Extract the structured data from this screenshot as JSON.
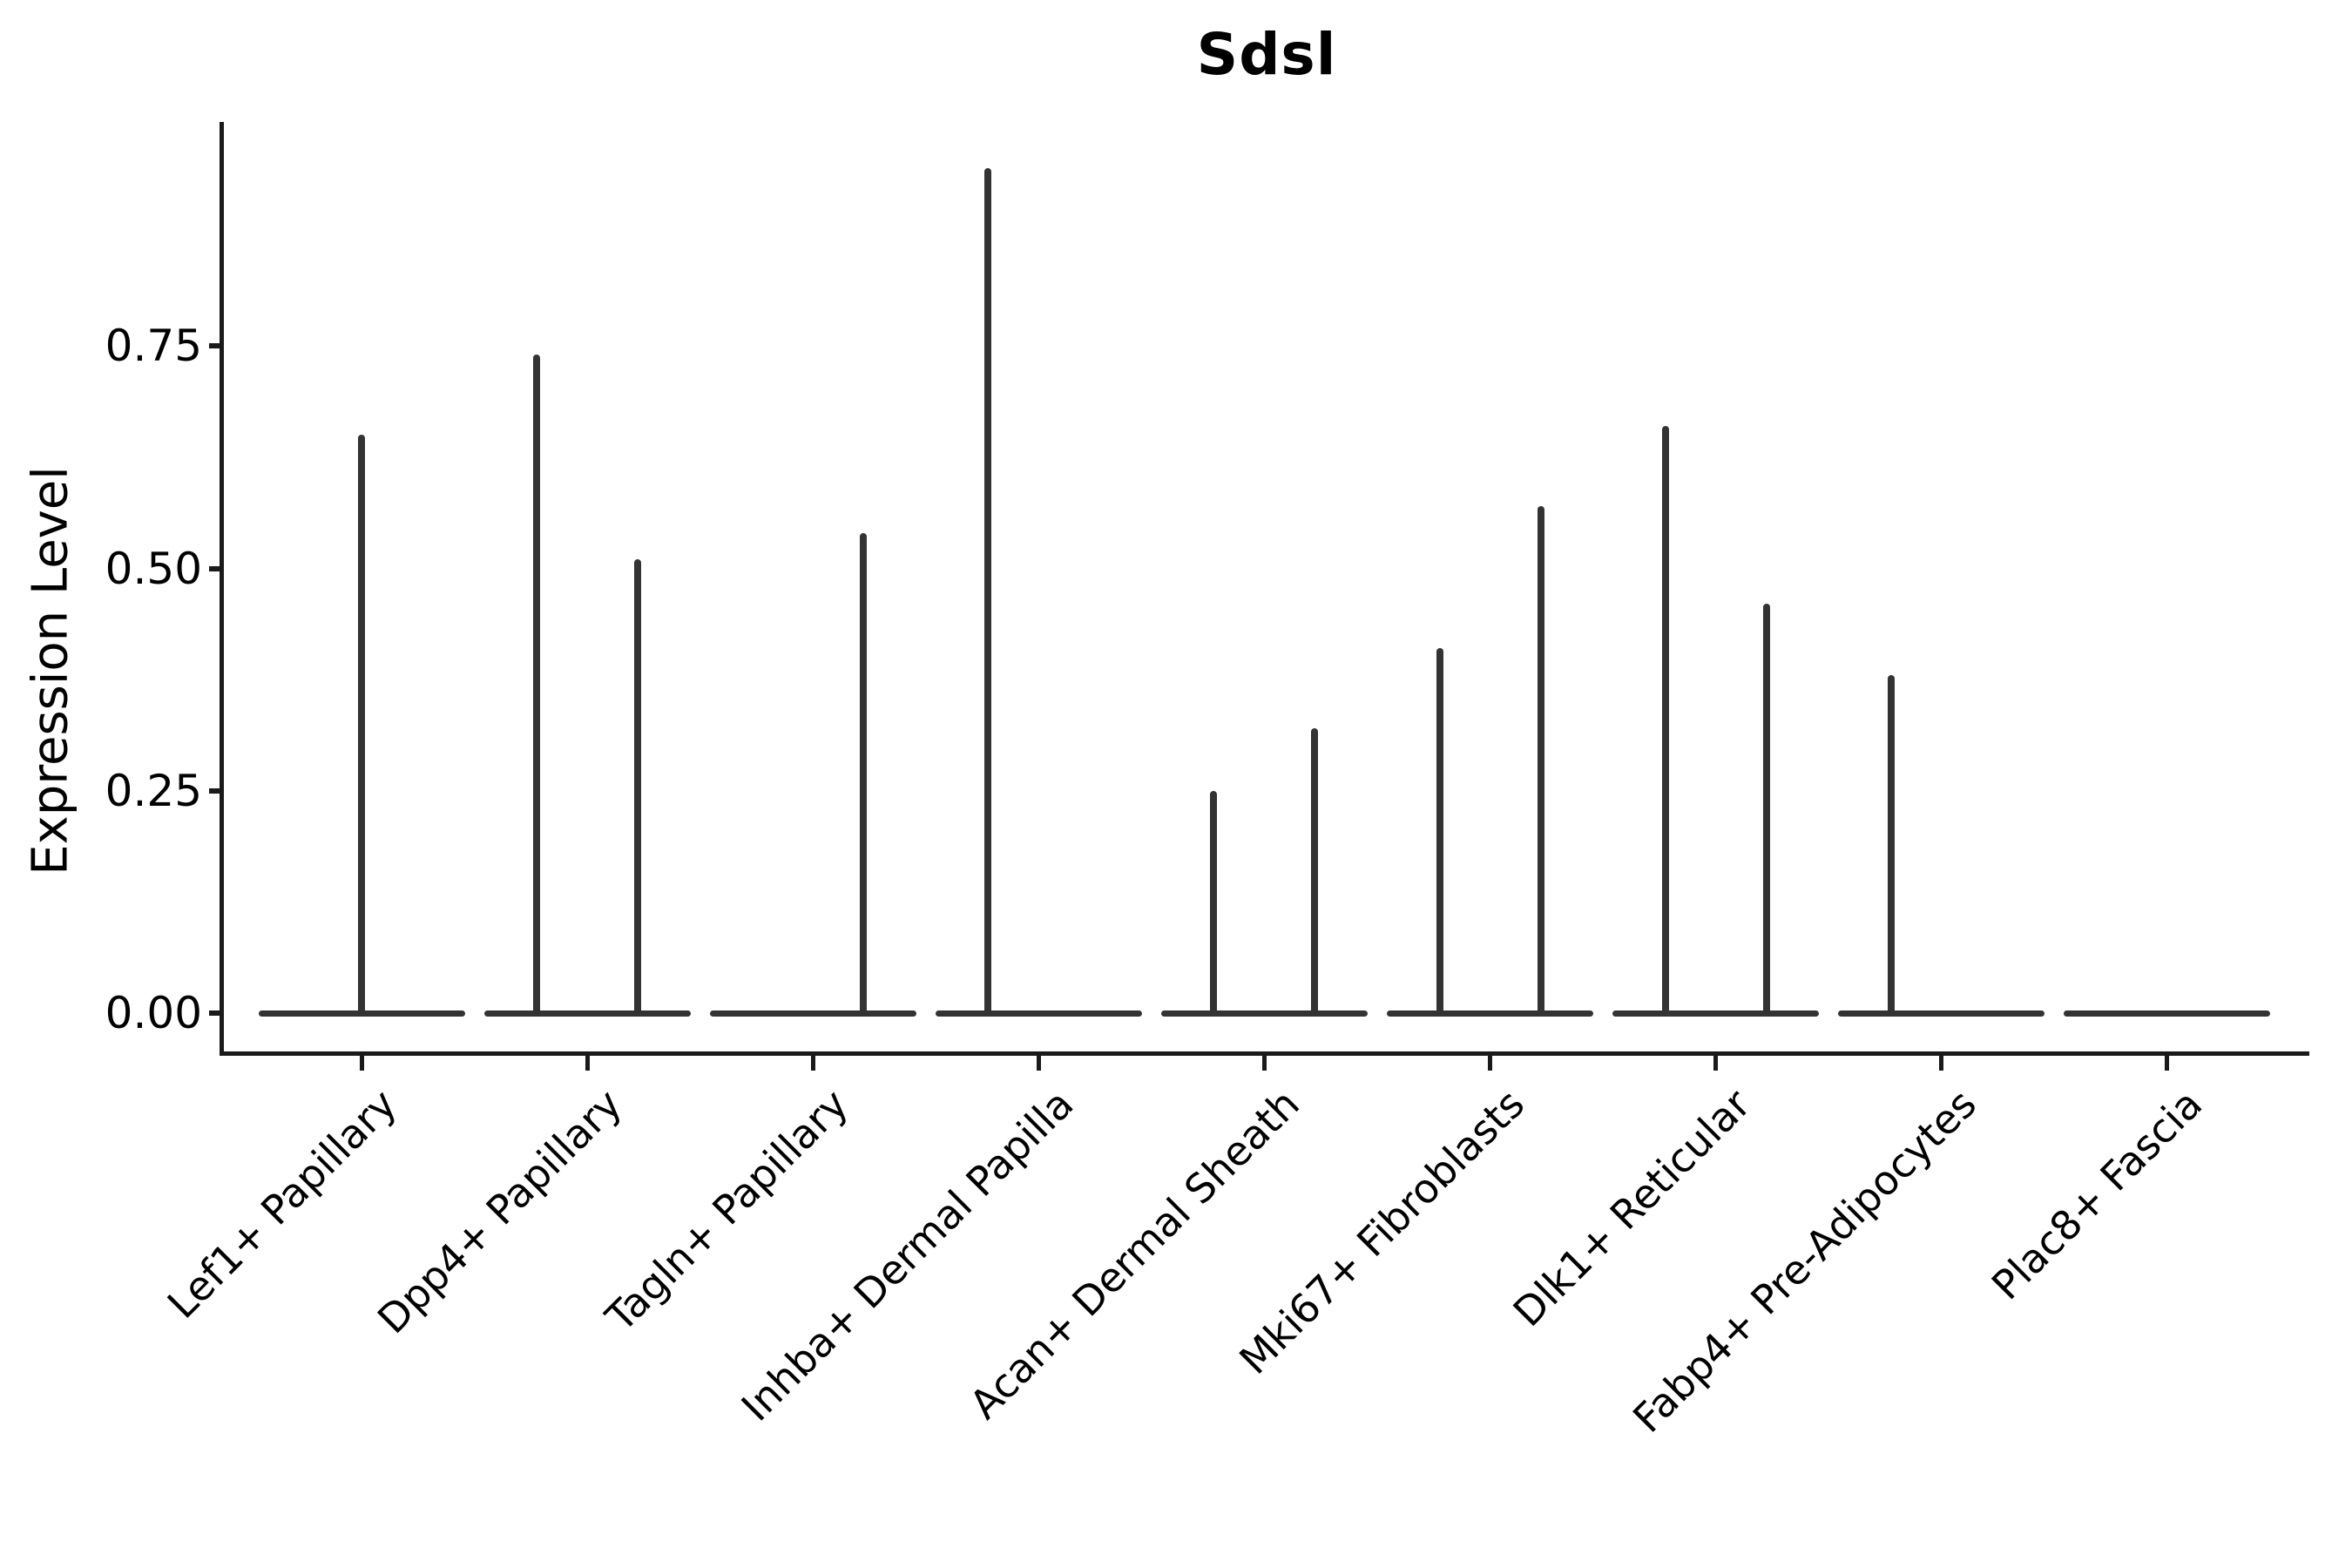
{
  "title": "Sdsl",
  "y_axis": {
    "label": "Expression Level",
    "tick_labels": [
      "0.00",
      "0.25",
      "0.50",
      "0.75"
    ],
    "tick_values": [
      0,
      0.25,
      0.5,
      0.75
    ]
  },
  "colors": {
    "violin": "#333333",
    "axis": "#1a1a1a",
    "text": "#000000",
    "background": "#ffffff"
  },
  "chart_data": {
    "type": "violin",
    "title": "Sdsl",
    "xlabel": "",
    "ylabel": "Expression Level",
    "ylim": [
      -0.05,
      1.0
    ],
    "yticks": [
      0,
      0.25,
      0.5,
      0.75
    ],
    "x_tick_rotation": 45,
    "grid": false,
    "legend": false,
    "description": "Collapsed violins: wide flat body at 0 expression with a thin spike up to the max expression value; several categories contain two side-by-side sub-violins",
    "categories": [
      "Lef1+ Papillary",
      "Dpp4+ Papillary",
      "Tagln+ Papillary",
      "Inhba+ Dermal Papilla",
      "Acan+ Dermal Sheath",
      "Mki67+ Fibroblasts",
      "Dlk1+ Reticular",
      "Fabp4+ Pre-Adipocytes",
      "Plac8+ Fascia"
    ],
    "series": [
      {
        "category": "Lef1+ Papillary",
        "violins": [
          {
            "slot": "full",
            "max_expression": 0.65
          }
        ]
      },
      {
        "category": "Dpp4+ Papillary",
        "violins": [
          {
            "slot": "left",
            "max_expression": 0.74
          },
          {
            "slot": "right",
            "max_expression": 0.51
          }
        ]
      },
      {
        "category": "Tagln+ Papillary",
        "violins": [
          {
            "slot": "left",
            "max_expression": 0
          },
          {
            "slot": "right",
            "max_expression": 0.54
          }
        ]
      },
      {
        "category": "Inhba+ Dermal Papilla",
        "violins": [
          {
            "slot": "left",
            "max_expression": 0.95
          },
          {
            "slot": "right",
            "max_expression": 0
          }
        ]
      },
      {
        "category": "Acan+ Dermal Sheath",
        "violins": [
          {
            "slot": "left",
            "max_expression": 0.25
          },
          {
            "slot": "right",
            "max_expression": 0.32
          }
        ]
      },
      {
        "category": "Mki67+ Fibroblasts",
        "violins": [
          {
            "slot": "left",
            "max_expression": 0.41
          },
          {
            "slot": "right",
            "max_expression": 0.57
          }
        ]
      },
      {
        "category": "Dlk1+ Reticular",
        "violins": [
          {
            "slot": "left",
            "max_expression": 0.66
          },
          {
            "slot": "right",
            "max_expression": 0.46
          }
        ]
      },
      {
        "category": "Fabp4+ Pre-Adipocytes",
        "violins": [
          {
            "slot": "left",
            "max_expression": 0.38
          },
          {
            "slot": "right",
            "max_expression": 0
          }
        ]
      },
      {
        "category": "Plac8+ Fascia",
        "violins": [
          {
            "slot": "left",
            "max_expression": 0
          },
          {
            "slot": "right",
            "max_expression": 0
          }
        ]
      }
    ]
  }
}
